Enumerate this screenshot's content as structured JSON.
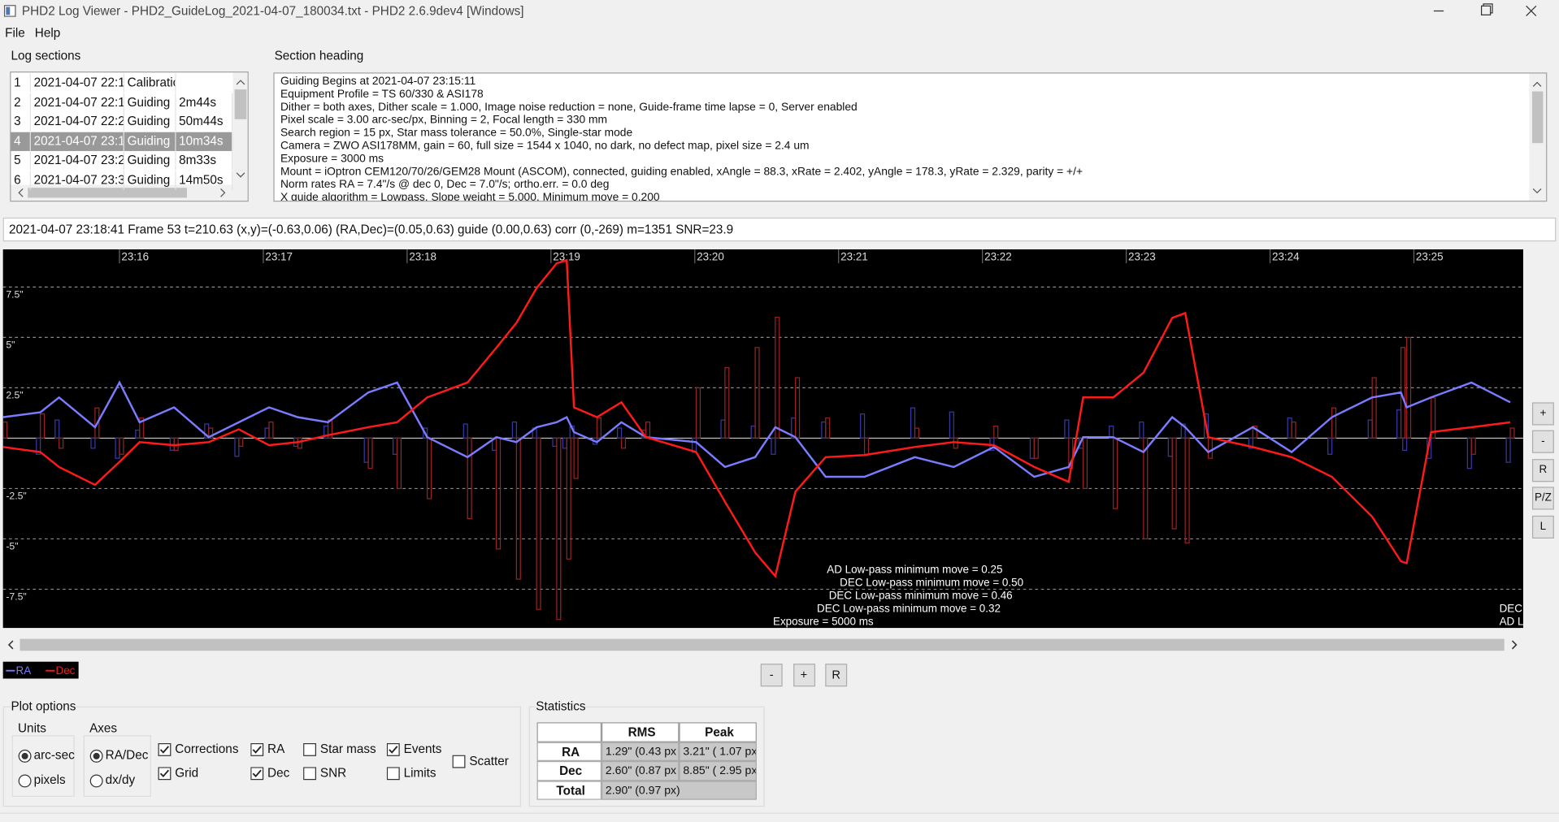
{
  "window": {
    "title": "PHD2 Log Viewer - PHD2_GuideLog_2021-04-07_180034.txt - PHD2 2.6.9dev4 [Windows]"
  },
  "menu": [
    "File",
    "Help"
  ],
  "log_sections": {
    "title": "Log sections",
    "selected": 3,
    "rows": [
      [
        "1",
        "2021-04-07 22:1",
        "Calibration"
      ],
      [
        "2",
        "2021-04-07 22:1",
        "Guiding",
        "2m44s"
      ],
      [
        "3",
        "2021-04-07 22:2",
        "Guiding",
        "50m44s"
      ],
      [
        "4",
        "2021-04-07 23:1",
        "Guiding",
        "10m34s"
      ],
      [
        "5",
        "2021-04-07 23:2",
        "Guiding",
        "8m33s"
      ],
      [
        "6",
        "2021-04-07 23:3",
        "Guiding",
        "14m50s"
      ]
    ]
  },
  "section_heading": {
    "title": "Section heading",
    "lines": [
      "Guiding Begins at 2021-04-07 23:15:11",
      "Equipment Profile = TS 60/330 & ASI178",
      "Dither = both axes, Dither scale = 1.000, Image noise reduction = none, Guide-frame time lapse = 0, Server enabled",
      "Pixel scale = 3.00 arc-sec/px, Binning = 2, Focal length = 330 mm",
      "Search region = 15 px, Star mass tolerance = 50.0%, Single-star mode",
      "Camera = ZWO ASI178MM, gain = 60, full size = 1544 x 1040, no dark, no defect map, pixel size = 2.4 um",
      "Exposure = 3000 ms",
      "Mount = iOptron CEM120/70/26/GEM28 Mount (ASCOM), connected, guiding enabled, xAngle = 88.3, xRate = 2.402, yAngle = 178.3, yRate = 2.329, parity = +/+",
      "Norm rates RA = 7.4\"/s @ dec 0, Dec = 7.0\"/s; ortho.err. = 0.0 deg",
      "X guide algorithm = Lowpass, Slope weight = 5.000, Minimum move = 0.200"
    ]
  },
  "status": "2021-04-07 23:18:41 Frame 53 t=210.63 (x,y)=(-0.63,0.06) (RA,Dec)=(0.05,0.63) guide (0.00,0.63) corr (0,-269) m=1351 SNR=23.9",
  "chart_data": {
    "type": "line",
    "grid": true,
    "xlim": [
      15.19,
      25.76
    ],
    "xticks": [
      {
        "value": 16,
        "label": "23:16"
      },
      {
        "value": 17,
        "label": "23:17"
      },
      {
        "value": 18,
        "label": "23:18"
      },
      {
        "value": 19,
        "label": "23:19"
      },
      {
        "value": 20,
        "label": "23:20"
      },
      {
        "value": 21,
        "label": "23:21"
      },
      {
        "value": 22,
        "label": "23:22"
      },
      {
        "value": 23,
        "label": "23:23"
      },
      {
        "value": 24,
        "label": "23:24"
      },
      {
        "value": 25,
        "label": "23:25"
      }
    ],
    "ylim": [
      -9.42,
      9.37
    ],
    "yticks": [
      {
        "value": 7.5,
        "label": "7.5\""
      },
      {
        "value": 5,
        "label": "5\""
      },
      {
        "value": 2.5,
        "label": "2.5\""
      },
      {
        "value": -2.5,
        "label": "-2.5\""
      },
      {
        "value": -5,
        "label": "-5\""
      },
      {
        "value": -7.5,
        "label": "-7.5\""
      }
    ],
    "x": [
      15.19,
      15.45,
      15.58,
      15.83,
      16.0,
      16.14,
      16.38,
      16.62,
      16.83,
      17.04,
      17.24,
      17.45,
      17.73,
      17.93,
      18.14,
      18.42,
      18.62,
      18.76,
      18.9,
      19.04,
      19.11,
      19.16,
      19.32,
      19.49,
      19.66,
      20.01,
      20.21,
      20.42,
      20.56,
      20.7,
      20.91,
      21.18,
      21.53,
      21.8,
      22.08,
      22.36,
      22.6,
      22.7,
      22.91,
      23.12,
      23.32,
      23.41,
      23.57,
      23.88,
      24.15,
      24.43,
      24.71,
      24.91,
      24.95,
      25.12,
      25.4,
      25.67
    ],
    "series": [
      {
        "name": "RA",
        "color": "#7b7bff",
        "values": [
          1.04,
          1.28,
          2.02,
          0.54,
          2.76,
          0.79,
          1.53,
          0.05,
          0.79,
          1.53,
          1.04,
          0.79,
          2.27,
          2.76,
          0.05,
          -0.94,
          0.05,
          -0.2,
          0.54,
          0.79,
          1.04,
          0.3,
          -0.2,
          0.79,
          0.05,
          -0.2,
          -1.43,
          -0.94,
          0.54,
          0.05,
          -1.92,
          -1.92,
          -0.94,
          -1.43,
          -0.44,
          -1.92,
          -1.43,
          0.05,
          0.05,
          -0.69,
          1.04,
          0.54,
          -0.69,
          0.54,
          -0.69,
          1.04,
          2.02,
          2.27,
          1.53,
          2.02,
          2.76,
          1.78
        ]
      },
      {
        "name": "Dec",
        "color": "#ff1a1a",
        "values": [
          -0.44,
          -0.69,
          -1.43,
          -2.32,
          -1.18,
          -0.2,
          -0.35,
          -0.2,
          0.44,
          -0.35,
          -0.2,
          0.15,
          0.54,
          0.79,
          2.02,
          2.76,
          4.49,
          5.72,
          7.45,
          8.68,
          8.83,
          1.53,
          1.04,
          1.78,
          0.05,
          -0.69,
          -3.16,
          -5.67,
          -6.85,
          -2.66,
          -0.94,
          -0.84,
          -0.44,
          -0.2,
          -0.35,
          -1.43,
          -2.17,
          2.02,
          2.02,
          3.25,
          5.97,
          6.21,
          0.05,
          -0.44,
          -0.94,
          -1.92,
          -3.9,
          -6.11,
          -6.21,
          0.3,
          0.54,
          0.79
        ]
      }
    ],
    "corrections": [
      {
        "color": "#3838a8",
        "values": [
          0.6,
          -0.8,
          0.9,
          -0.5,
          -1.0,
          0.4,
          -0.6,
          0.7,
          -0.9,
          0.5,
          -0.4,
          0.6,
          -1.2,
          -0.8,
          0.5,
          0.7,
          -0.6,
          0.8,
          0.5,
          -0.4,
          -0.5,
          0.6,
          -0.3,
          0.5,
          0.4,
          -0.7,
          0.9,
          0.6,
          -0.8,
          1.0,
          0.8,
          1.2,
          1.5,
          1.3,
          -0.6,
          -1.0,
          0.9,
          -0.5,
          0.6,
          0.8,
          -0.9,
          0.7,
          1.2,
          -0.5,
          1.0,
          -0.8,
          0.9,
          1.4,
          -0.6,
          -1.0,
          -1.5,
          -1.2
        ]
      },
      {
        "color": "#9a2222",
        "values": [
          0.8,
          1.2,
          -0.5,
          1.5,
          -0.8,
          1.0,
          -0.6,
          0.5,
          -0.4,
          0.8,
          -0.5,
          0.9,
          -1.5,
          -2.5,
          -3.0,
          -4.0,
          -5.5,
          -7.0,
          -8.5,
          -9.0,
          -6.0,
          -2.0,
          1.0,
          -0.5,
          0.8,
          2.5,
          3.5,
          4.5,
          6.0,
          3.0,
          1.0,
          -0.8,
          0.5,
          -0.5,
          0.6,
          -1.0,
          -1.5,
          -2.5,
          -3.5,
          -5.0,
          -4.5,
          -5.2,
          -1.0,
          0.6,
          0.8,
          1.5,
          3.0,
          4.5,
          5.0,
          2.0,
          -0.8,
          0.5
        ]
      }
    ],
    "annotations": [
      "AD Low-pass minimum move = 0.25",
      "DEC Low-pass minimum move = 0.50",
      "DEC Low-pass minimum move = 0.46",
      "DEC Low-pass minimum move = 0.32",
      "Exposure = 5000 ms",
      "DEC",
      "AD L"
    ]
  },
  "graph_buttons": [
    "+",
    "-",
    "R",
    "P/Z",
    "L"
  ],
  "zoom_buttons": [
    "-",
    "+",
    "R"
  ],
  "plot_options": {
    "title": "Plot options",
    "units": {
      "title": "Units",
      "options": [
        {
          "label": "arc-sec",
          "checked": true
        },
        {
          "label": "pixels",
          "checked": false
        }
      ]
    },
    "axes": {
      "title": "Axes",
      "options": [
        {
          "label": "RA/Dec",
          "checked": true
        },
        {
          "label": "dx/dy",
          "checked": false
        }
      ]
    },
    "checkboxes": [
      {
        "label": "Corrections",
        "checked": true
      },
      {
        "label": "Grid",
        "checked": true
      },
      {
        "label": "RA",
        "checked": true
      },
      {
        "label": "Dec",
        "checked": true
      },
      {
        "label": "Star mass",
        "checked": false
      },
      {
        "label": "SNR",
        "checked": false
      },
      {
        "label": "Events",
        "checked": true
      },
      {
        "label": "Limits",
        "checked": false
      },
      {
        "label": "Scatter",
        "checked": false
      }
    ]
  },
  "statistics": {
    "title": "Statistics",
    "columns": [
      "RMS",
      "Peak"
    ],
    "rows": [
      [
        "RA",
        "1.29\" (0.43 px",
        "3.21\" ( 1.07 px"
      ],
      [
        "Dec",
        "2.60\" (0.87 px",
        "8.85\" ( 2.95 px"
      ],
      [
        "Total",
        "2.90\" (0.97 px)"
      ]
    ]
  }
}
